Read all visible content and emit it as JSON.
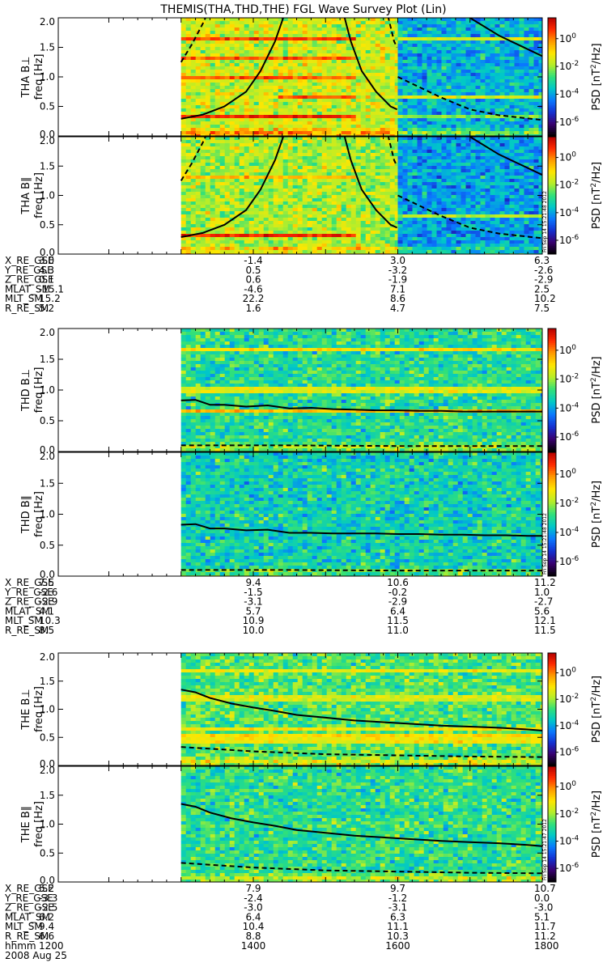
{
  "title": "THEMIS(THA,THD,THE) FGL Wave Survey Plot (Lin)",
  "colorbar": {
    "label_base": "PSD [nT",
    "label_sup": "2",
    "label_tail": "/Hz]",
    "ticks": [
      {
        "base": "10",
        "exp": "0"
      },
      {
        "base": "10",
        "exp": "-2"
      },
      {
        "base": "10",
        "exp": "-4"
      },
      {
        "base": "10",
        "exp": "-6"
      }
    ],
    "log_range": [
      -7,
      1.5
    ],
    "tick_values": [
      0,
      -2,
      -4,
      -6
    ],
    "colors": [
      "#000000",
      "#3a0070",
      "#1530d0",
      "#0a78ff",
      "#00c8c8",
      "#30e07a",
      "#b5ee2a",
      "#ffe600",
      "#ff9a00",
      "#ff2a00",
      "#b40000"
    ]
  },
  "x_axis": {
    "label": "hhmm",
    "date": "2008 Aug 25",
    "ticks": [
      "1200",
      "1400",
      "1600",
      "1800"
    ],
    "tick_values": [
      1200,
      1400,
      1600,
      1800
    ],
    "range": [
      1130,
      1800
    ]
  },
  "y_axis": {
    "label": "freq [Hz]",
    "ticks": [
      "0.0",
      "0.5",
      "1.0",
      "1.5",
      "2.0"
    ],
    "tick_values": [
      0.0,
      0.5,
      1.0,
      1.5,
      2.0
    ],
    "range": [
      0,
      2
    ]
  },
  "stamps": [
    "Fri Sep 14 15:21:48 2012",
    "Fri Sep 14 15:21:48 2012",
    "Fri Sep 14 15:21:47 2012"
  ],
  "chart_data": [
    {
      "type": "heatmap",
      "probe": "THA",
      "ephemeris": [
        {
          "label": "X_RE_GSE",
          "values": [
            "3.0",
            "-1.4",
            "3.0",
            "6.3"
          ]
        },
        {
          "label": "Y_RE_GSE",
          "values": [
            "4.3",
            "0.5",
            "-3.2",
            "-2.6"
          ]
        },
        {
          "label": "Z_RE_GSE",
          "values": [
            "0.1",
            "0.6",
            "-1.9",
            "-2.9"
          ]
        },
        {
          "label": "MLAT_SM",
          "values": [
            "-15.1",
            "-4.6",
            "7.1",
            "2.5"
          ]
        },
        {
          "label": "MLT_SM",
          "values": [
            "15.2",
            "22.2",
            "8.6",
            "10.2"
          ]
        },
        {
          "label": "R_RE_SM",
          "values": [
            "5.2",
            "1.6",
            "4.7",
            "7.5"
          ]
        }
      ],
      "panels": [
        {
          "component": "perp",
          "ylabel": "THA B⊥",
          "regions": [
            {
              "x": [
                1300,
                1600
              ],
              "level": -1.6
            },
            {
              "x": [
                1600,
                1800
              ],
              "level": -3.8
            }
          ],
          "bands": [
            {
              "f": 1.66,
              "level": 0.6,
              "x": [
                1300,
                1545
              ]
            },
            {
              "f": 1.33,
              "level": 0.3,
              "x": [
                1300,
                1545
              ]
            },
            {
              "f": 1.0,
              "level": 0.3,
              "x": [
                1300,
                1545
              ]
            },
            {
              "f": 0.66,
              "level": 0.2,
              "x": [
                1435,
                1545
              ]
            },
            {
              "f": 0.33,
              "level": 0.8,
              "x": [
                1300,
                1545
              ]
            },
            {
              "f": 1.66,
              "level": -1.5,
              "x": [
                1600,
                1800
              ]
            },
            {
              "f": 0.66,
              "level": -1.5,
              "x": [
                1600,
                1800
              ]
            },
            {
              "f": 0.33,
              "level": -2.2,
              "x": [
                1600,
                1800
              ]
            }
          ],
          "lines": [
            {
              "style": "solid",
              "x": [
                1300,
                1330,
                1360,
                1390,
                1410,
                1430,
                1450,
                1460
              ],
              "y": [
                0.29,
                0.36,
                0.5,
                0.75,
                1.1,
                1.6,
                2.3,
                2.8
              ]
            },
            {
              "style": "solid",
              "x": [
                1510,
                1520,
                1535,
                1550,
                1570,
                1590,
                1599
              ],
              "y": [
                2.8,
                2.3,
                1.6,
                1.1,
                0.75,
                0.5,
                0.45
              ]
            },
            {
              "style": "dashed",
              "x": [
                1300,
                1315,
                1330,
                1345,
                1360
              ],
              "y": [
                1.25,
                1.55,
                1.9,
                2.3,
                2.7
              ]
            },
            {
              "style": "dashed",
              "x": [
                1575,
                1585,
                1595,
                1599
              ],
              "y": [
                2.7,
                2.1,
                1.6,
                1.5
              ]
            },
            {
              "style": "solid",
              "x": [
                1600,
                1660,
                1700,
                1740,
                1800
              ],
              "y": [
                2.9,
                2.3,
                2.0,
                1.7,
                1.35
              ]
            },
            {
              "style": "dashed",
              "x": [
                1600,
                1660,
                1700,
                1740,
                1800
              ],
              "y": [
                1.0,
                0.65,
                0.45,
                0.35,
                0.27
              ]
            }
          ]
        },
        {
          "component": "par",
          "ylabel": "THA B∥",
          "regions": [
            {
              "x": [
                1300,
                1600
              ],
              "level": -1.9
            },
            {
              "x": [
                1600,
                1800
              ],
              "level": -4.0
            }
          ],
          "bands": [
            {
              "f": 1.33,
              "level": -0.6,
              "x": [
                1300,
                1545
              ]
            },
            {
              "f": 0.33,
              "level": 0.8,
              "x": [
                1300,
                1545
              ]
            },
            {
              "f": 0.66,
              "level": -1.8,
              "x": [
                1600,
                1800
              ]
            }
          ],
          "lines": [
            {
              "style": "solid",
              "x": [
                1300,
                1330,
                1360,
                1390,
                1410,
                1430,
                1450,
                1460
              ],
              "y": [
                0.29,
                0.36,
                0.5,
                0.75,
                1.1,
                1.6,
                2.3,
                2.8
              ]
            },
            {
              "style": "solid",
              "x": [
                1510,
                1520,
                1535,
                1550,
                1570,
                1590,
                1599
              ],
              "y": [
                2.8,
                2.3,
                1.6,
                1.1,
                0.75,
                0.5,
                0.45
              ]
            },
            {
              "style": "dashed",
              "x": [
                1300,
                1315,
                1330,
                1345,
                1360
              ],
              "y": [
                1.25,
                1.55,
                1.9,
                2.3,
                2.7
              ]
            },
            {
              "style": "dashed",
              "x": [
                1575,
                1585,
                1595,
                1599
              ],
              "y": [
                2.7,
                2.1,
                1.6,
                1.5
              ]
            },
            {
              "style": "solid",
              "x": [
                1600,
                1660,
                1700,
                1740,
                1800
              ],
              "y": [
                2.9,
                2.3,
                2.0,
                1.7,
                1.35
              ]
            },
            {
              "style": "dashed",
              "x": [
                1600,
                1660,
                1700,
                1740,
                1800
              ],
              "y": [
                1.0,
                0.65,
                0.45,
                0.35,
                0.27
              ]
            }
          ]
        }
      ]
    },
    {
      "type": "heatmap",
      "probe": "THD",
      "ephemeris": [
        {
          "label": "X_RE_GSE",
          "values": [
            "7.5",
            "9.4",
            "10.6",
            "11.2"
          ]
        },
        {
          "label": "Y_RE_GSE",
          "values": [
            "-2.6",
            "-1.5",
            "-0.2",
            "1.0"
          ]
        },
        {
          "label": "Z_RE_GSE",
          "values": [
            "-2.9",
            "-3.1",
            "-2.9",
            "-2.7"
          ]
        },
        {
          "label": "MLAT_SM",
          "values": [
            "4.1",
            "5.7",
            "6.4",
            "5.6"
          ]
        },
        {
          "label": "MLT_SM",
          "values": [
            "10.3",
            "10.9",
            "11.5",
            "12.1"
          ]
        },
        {
          "label": "R_RE_SM",
          "values": [
            "8.5",
            "10.0",
            "11.0",
            "11.5"
          ]
        }
      ],
      "panels": [
        {
          "component": "perp",
          "ylabel": "THD B⊥",
          "regions": [
            {
              "x": [
                1300,
                1800
              ],
              "level": -3.0
            }
          ],
          "bands": [
            {
              "f": 1.67,
              "level": -1.0,
              "x": [
                1300,
                1800
              ]
            },
            {
              "f": 1.0,
              "level": -1.4,
              "x": [
                1300,
                1800
              ]
            },
            {
              "f": 0.66,
              "level": -0.6,
              "x": [
                1300,
                1800
              ]
            }
          ],
          "lines": [
            {
              "style": "solid",
              "x": [
                1300,
                1320,
                1340,
                1360,
                1390,
                1420,
                1450,
                1480,
                1510,
                1540,
                1570,
                1600,
                1630,
                1660,
                1690,
                1720,
                1750,
                1780,
                1800
              ],
              "y": [
                0.83,
                0.84,
                0.76,
                0.76,
                0.73,
                0.75,
                0.7,
                0.71,
                0.69,
                0.68,
                0.67,
                0.67,
                0.66,
                0.66,
                0.65,
                0.65,
                0.65,
                0.65,
                0.65
              ]
            },
            {
              "style": "dashed",
              "x": [
                1300,
                1450,
                1600,
                1800
              ],
              "y": [
                0.1,
                0.1,
                0.09,
                0.09
              ]
            }
          ]
        },
        {
          "component": "par",
          "ylabel": "THD B∥",
          "regions": [
            {
              "x": [
                1300,
                1800
              ],
              "level": -3.3
            }
          ],
          "bands": [],
          "lines": [
            {
              "style": "solid",
              "x": [
                1300,
                1320,
                1340,
                1360,
                1390,
                1420,
                1450,
                1480,
                1510,
                1540,
                1570,
                1600,
                1630,
                1660,
                1690,
                1720,
                1750,
                1780,
                1800
              ],
              "y": [
                0.83,
                0.84,
                0.77,
                0.77,
                0.74,
                0.75,
                0.7,
                0.7,
                0.69,
                0.69,
                0.69,
                0.68,
                0.68,
                0.67,
                0.67,
                0.66,
                0.66,
                0.65,
                0.65
              ]
            },
            {
              "style": "dashed",
              "x": [
                1300,
                1450,
                1600,
                1800
              ],
              "y": [
                0.1,
                0.1,
                0.09,
                0.09
              ]
            }
          ]
        }
      ]
    },
    {
      "type": "heatmap",
      "probe": "THE",
      "ephemeris": [
        {
          "label": "X_RE_GSE",
          "values": [
            "5.2",
            "7.9",
            "9.7",
            "10.7"
          ]
        },
        {
          "label": "Y_RE_GSE",
          "values": [
            "-3.3",
            "-2.4",
            "-1.2",
            "0.0"
          ]
        },
        {
          "label": "Z_RE_GSE",
          "values": [
            "-2.5",
            "-3.0",
            "-3.1",
            "-3.0"
          ]
        },
        {
          "label": "MLAT_SM",
          "values": [
            "6.2",
            "6.4",
            "6.3",
            "5.1"
          ]
        },
        {
          "label": "MLT_SM",
          "values": [
            "9.4",
            "10.4",
            "11.1",
            "11.7"
          ]
        },
        {
          "label": "R_RE_SM",
          "values": [
            "6.6",
            "8.8",
            "10.3",
            "11.2"
          ]
        }
      ],
      "panels": [
        {
          "component": "perp",
          "ylabel": "THE B⊥",
          "regions": [
            {
              "x": [
                1300,
                1800
              ],
              "level": -2.6
            }
          ],
          "bands": [
            {
              "f": 1.7,
              "level": -1.3,
              "x": [
                1300,
                1800
              ]
            },
            {
              "f": 1.2,
              "level": -1.5,
              "x": [
                1300,
                1800
              ]
            },
            {
              "f": 0.66,
              "level": -1.1,
              "x": [
                1300,
                1800
              ]
            },
            {
              "f": 0.55,
              "level": -0.9,
              "x": [
                1300,
                1800
              ]
            },
            {
              "f": 0.45,
              "level": -1.2,
              "x": [
                1300,
                1800
              ]
            }
          ],
          "lines": [
            {
              "style": "solid",
              "x": [
                1300,
                1320,
                1340,
                1370,
                1400,
                1430,
                1460,
                1500,
                1540,
                1580,
                1620,
                1660,
                1700,
                1740,
                1780,
                1800
              ],
              "y": [
                1.35,
                1.3,
                1.2,
                1.1,
                1.03,
                0.97,
                0.9,
                0.85,
                0.8,
                0.77,
                0.74,
                0.71,
                0.69,
                0.67,
                0.64,
                0.62
              ]
            },
            {
              "style": "dashed",
              "x": [
                1300,
                1400,
                1500,
                1600,
                1700,
                1800
              ],
              "y": [
                0.33,
                0.25,
                0.2,
                0.18,
                0.16,
                0.15
              ]
            }
          ]
        },
        {
          "component": "par",
          "ylabel": "THE B∥",
          "regions": [
            {
              "x": [
                1300,
                1800
              ],
              "level": -2.9
            }
          ],
          "bands": [],
          "lines": [
            {
              "style": "solid",
              "x": [
                1300,
                1320,
                1340,
                1370,
                1400,
                1430,
                1460,
                1500,
                1540,
                1580,
                1620,
                1660,
                1700,
                1740,
                1780,
                1800
              ],
              "y": [
                1.35,
                1.3,
                1.2,
                1.1,
                1.03,
                0.97,
                0.9,
                0.85,
                0.8,
                0.77,
                0.74,
                0.71,
                0.69,
                0.67,
                0.64,
                0.62
              ]
            },
            {
              "style": "dashed",
              "x": [
                1300,
                1400,
                1500,
                1600,
                1700,
                1800
              ],
              "y": [
                0.33,
                0.25,
                0.2,
                0.18,
                0.16,
                0.15
              ]
            }
          ]
        }
      ]
    }
  ]
}
